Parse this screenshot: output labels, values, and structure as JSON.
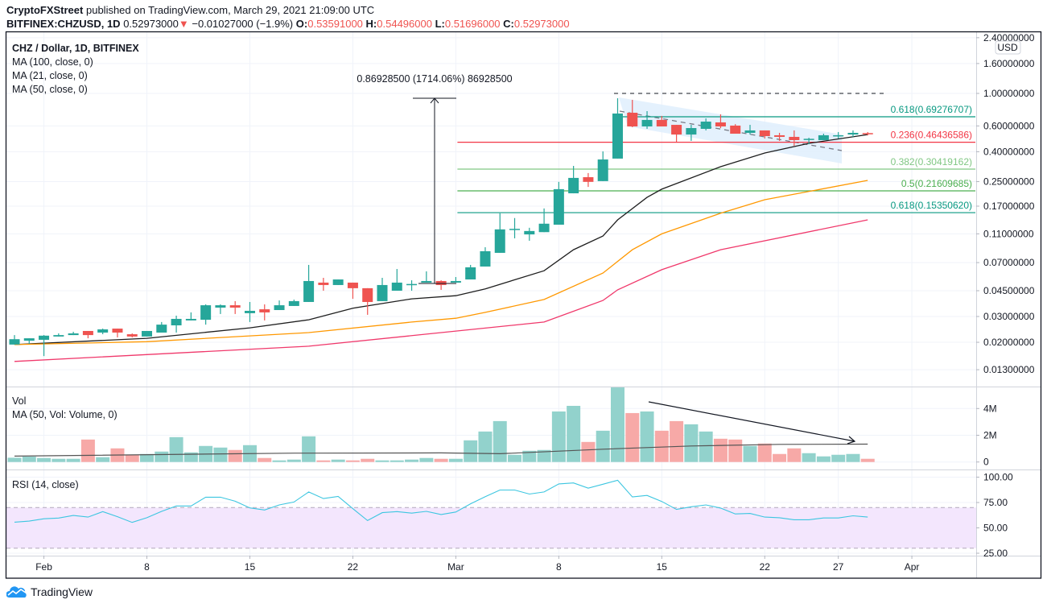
{
  "header": {
    "publisher": "CryptoFXStreet",
    "published_text": "published on TradingView.com, March 29, 2021 21:09:00 UTC",
    "symbol": "BITFINEX:CHZUSD, 1D",
    "last": "0.52973000",
    "change": "−0.01027000 (−1.9%)",
    "o_label": "O:",
    "o": "0.53591000",
    "h_label": "H:",
    "h": "0.54496000",
    "l_label": "L:",
    "l": "0.51696000",
    "c_label": "C:",
    "c": "0.52973000",
    "down_icon": "triangle-down"
  },
  "legend": {
    "title": "CHZ / Dollar, 1D, BITFINEX",
    "ma100": "MA (100, close, 0)",
    "ma21": "MA (21, close, 0)",
    "ma50": "MA (50, close, 0)",
    "vol": "Vol",
    "vol_ma": "MA (50, Vol: Volume, 0)",
    "rsi": "RSI (14, close)"
  },
  "annotations": {
    "measure_label": "0.86928500 (1714.06%) 86928500"
  },
  "price_axis": {
    "currency": "USD",
    "labels": [
      "2.40000000",
      "1.60000000",
      "1.00000000",
      "0.60000000",
      "0.40000000",
      "0.25000000",
      "0.17000000",
      "0.11000000",
      "0.07000000",
      "0.04500000",
      "0.03000000",
      "0.02000000",
      "0.01300000"
    ]
  },
  "volume_axis": {
    "labels": [
      "4M",
      "2M",
      "0"
    ],
    "values_m": [
      4,
      2,
      0
    ]
  },
  "rsi_axis": {
    "labels": [
      "100.00",
      "75.00",
      "50.00",
      "25.00"
    ],
    "values": [
      100,
      75,
      50,
      25
    ],
    "band": [
      30,
      70
    ]
  },
  "time_axis": {
    "labels": [
      {
        "label": "Feb",
        "date": "2021-02-01"
      },
      {
        "label": "8",
        "date": "2021-02-08"
      },
      {
        "label": "15",
        "date": "2021-02-15"
      },
      {
        "label": "22",
        "date": "2021-02-22"
      },
      {
        "label": "Mar",
        "date": "2021-03-01"
      },
      {
        "label": "8",
        "date": "2021-03-08"
      },
      {
        "label": "15",
        "date": "2021-03-15"
      },
      {
        "label": "22",
        "date": "2021-03-22"
      },
      {
        "label": "27",
        "date": "2021-03-27"
      },
      {
        "label": "Apr",
        "date": "2021-04-01"
      }
    ]
  },
  "footer": {
    "brand": "TradingView"
  },
  "colors": {
    "up": "#26a69a",
    "down": "#ef5350",
    "vol_up": "#92d2cc",
    "vol_down": "#f7a9a7",
    "ma21": "#1e1e1e",
    "ma50": "#ff9800",
    "ma100": "#f0386b",
    "rsi": "#3cc6e0",
    "rsi_band": "#f3e6fd",
    "wedge": "#ddeefc"
  },
  "chart_data": {
    "type": "candlestick",
    "scale": "log",
    "ylim": [
      0.012,
      2.5
    ],
    "candles": [
      {
        "date": "2021-01-30",
        "o": 0.0193,
        "h": 0.0224,
        "l": 0.0193,
        "c": 0.021
      },
      {
        "date": "2021-01-31",
        "o": 0.0205,
        "h": 0.0213,
        "l": 0.0195,
        "c": 0.0213
      },
      {
        "date": "2021-02-01",
        "o": 0.0208,
        "h": 0.0224,
        "l": 0.0161,
        "c": 0.0222
      },
      {
        "date": "2021-02-02",
        "o": 0.0219,
        "h": 0.023,
        "l": 0.0219,
        "c": 0.0224
      },
      {
        "date": "2021-02-03",
        "o": 0.0224,
        "h": 0.0236,
        "l": 0.0224,
        "c": 0.023
      },
      {
        "date": "2021-02-04",
        "o": 0.0239,
        "h": 0.0239,
        "l": 0.0213,
        "c": 0.0224
      },
      {
        "date": "2021-02-05",
        "o": 0.0233,
        "h": 0.0248,
        "l": 0.0227,
        "c": 0.0245
      },
      {
        "date": "2021-02-06",
        "o": 0.0248,
        "h": 0.0248,
        "l": 0.0216,
        "c": 0.0233
      },
      {
        "date": "2021-02-07",
        "o": 0.0227,
        "h": 0.023,
        "l": 0.0216,
        "c": 0.0219
      },
      {
        "date": "2021-02-08",
        "o": 0.0219,
        "h": 0.0239,
        "l": 0.0219,
        "c": 0.0239
      },
      {
        "date": "2021-02-09",
        "o": 0.0233,
        "h": 0.0275,
        "l": 0.0233,
        "c": 0.0264
      },
      {
        "date": "2021-02-10",
        "o": 0.0261,
        "h": 0.0304,
        "l": 0.0233,
        "c": 0.0289
      },
      {
        "date": "2021-02-11",
        "o": 0.0282,
        "h": 0.032,
        "l": 0.0282,
        "c": 0.0289
      },
      {
        "date": "2021-02-12",
        "o": 0.0285,
        "h": 0.0363,
        "l": 0.0264,
        "c": 0.0358
      },
      {
        "date": "2021-02-13",
        "o": 0.0345,
        "h": 0.0363,
        "l": 0.0312,
        "c": 0.0358
      },
      {
        "date": "2021-02-14",
        "o": 0.0358,
        "h": 0.0382,
        "l": 0.0312,
        "c": 0.0345
      },
      {
        "date": "2021-02-15",
        "o": 0.0316,
        "h": 0.0377,
        "l": 0.0275,
        "c": 0.0328
      },
      {
        "date": "2021-02-16",
        "o": 0.0336,
        "h": 0.0363,
        "l": 0.0282,
        "c": 0.032
      },
      {
        "date": "2021-02-17",
        "o": 0.0332,
        "h": 0.0386,
        "l": 0.0332,
        "c": 0.0358
      },
      {
        "date": "2021-02-18",
        "o": 0.0354,
        "h": 0.0391,
        "l": 0.0354,
        "c": 0.0382
      },
      {
        "date": "2021-02-19",
        "o": 0.0377,
        "h": 0.0675,
        "l": 0.0377,
        "c": 0.0524
      },
      {
        "date": "2021-02-20",
        "o": 0.0511,
        "h": 0.0551,
        "l": 0.045,
        "c": 0.0492
      },
      {
        "date": "2021-02-21",
        "o": 0.0492,
        "h": 0.0537,
        "l": 0.0492,
        "c": 0.0537
      },
      {
        "date": "2021-02-22",
        "o": 0.0511,
        "h": 0.0511,
        "l": 0.0396,
        "c": 0.0468
      },
      {
        "date": "2021-02-23",
        "o": 0.0468,
        "h": 0.0468,
        "l": 0.0308,
        "c": 0.0377
      },
      {
        "date": "2021-02-24",
        "o": 0.0382,
        "h": 0.0551,
        "l": 0.0382,
        "c": 0.0492
      },
      {
        "date": "2021-02-25",
        "o": 0.045,
        "h": 0.0633,
        "l": 0.045,
        "c": 0.0511
      },
      {
        "date": "2021-02-26",
        "o": 0.0498,
        "h": 0.053,
        "l": 0.045,
        "c": 0.05
      },
      {
        "date": "2021-02-27",
        "o": 0.0511,
        "h": 0.061,
        "l": 0.0511,
        "c": 0.0524
      },
      {
        "date": "2021-02-28",
        "o": 0.0524,
        "h": 0.053,
        "l": 0.0456,
        "c": 0.0492
      },
      {
        "date": "2021-03-01",
        "o": 0.0511,
        "h": 0.0558,
        "l": 0.0511,
        "c": 0.0524
      },
      {
        "date": "2021-03-02",
        "o": 0.0537,
        "h": 0.0675,
        "l": 0.0537,
        "c": 0.065
      },
      {
        "date": "2021-03-03",
        "o": 0.0658,
        "h": 0.0891,
        "l": 0.0658,
        "c": 0.0837
      },
      {
        "date": "2021-03-04",
        "o": 0.0816,
        "h": 0.152,
        "l": 0.0816,
        "c": 0.118
      },
      {
        "date": "2021-03-05",
        "o": 0.118,
        "h": 0.141,
        "l": 0.1025,
        "c": 0.119
      },
      {
        "date": "2021-03-06",
        "o": 0.109,
        "h": 0.121,
        "l": 0.0987,
        "c": 0.115
      },
      {
        "date": "2021-03-07",
        "o": 0.113,
        "h": 0.164,
        "l": 0.113,
        "c": 0.129
      },
      {
        "date": "2021-03-08",
        "o": 0.127,
        "h": 0.249,
        "l": 0.127,
        "c": 0.222
      },
      {
        "date": "2021-03-09",
        "o": 0.208,
        "h": 0.32,
        "l": 0.208,
        "c": 0.265
      },
      {
        "date": "2021-03-10",
        "o": 0.268,
        "h": 0.286,
        "l": 0.23,
        "c": 0.249
      },
      {
        "date": "2021-03-11",
        "o": 0.252,
        "h": 0.402,
        "l": 0.252,
        "c": 0.354
      },
      {
        "date": "2021-03-12",
        "o": 0.359,
        "h": 0.927,
        "l": 0.359,
        "c": 0.729
      },
      {
        "date": "2021-03-13",
        "o": 0.738,
        "h": 0.904,
        "l": 0.588,
        "c": 0.595
      },
      {
        "date": "2021-03-14",
        "o": 0.595,
        "h": 0.757,
        "l": 0.573,
        "c": 0.659
      },
      {
        "date": "2021-03-15",
        "o": 0.659,
        "h": 0.702,
        "l": 0.595,
        "c": 0.595
      },
      {
        "date": "2021-03-16",
        "o": 0.61,
        "h": 0.61,
        "l": 0.468,
        "c": 0.524
      },
      {
        "date": "2021-03-17",
        "o": 0.524,
        "h": 0.61,
        "l": 0.474,
        "c": 0.58
      },
      {
        "date": "2021-03-18",
        "o": 0.573,
        "h": 0.675,
        "l": 0.559,
        "c": 0.642
      },
      {
        "date": "2021-03-19",
        "o": 0.634,
        "h": 0.72,
        "l": 0.58,
        "c": 0.595
      },
      {
        "date": "2021-03-20",
        "o": 0.603,
        "h": 0.617,
        "l": 0.531,
        "c": 0.531
      },
      {
        "date": "2021-03-21",
        "o": 0.538,
        "h": 0.61,
        "l": 0.524,
        "c": 0.559
      },
      {
        "date": "2021-03-22",
        "o": 0.559,
        "h": 0.559,
        "l": 0.492,
        "c": 0.511
      },
      {
        "date": "2021-03-23",
        "o": 0.518,
        "h": 0.538,
        "l": 0.474,
        "c": 0.505
      },
      {
        "date": "2021-03-24",
        "o": 0.505,
        "h": 0.559,
        "l": 0.439,
        "c": 0.48
      },
      {
        "date": "2021-03-25",
        "o": 0.486,
        "h": 0.498,
        "l": 0.45,
        "c": 0.49
      },
      {
        "date": "2021-03-26",
        "o": 0.48,
        "h": 0.531,
        "l": 0.48,
        "c": 0.518
      },
      {
        "date": "2021-03-27",
        "o": 0.511,
        "h": 0.545,
        "l": 0.492,
        "c": 0.518
      },
      {
        "date": "2021-03-28",
        "o": 0.524,
        "h": 0.559,
        "l": 0.505,
        "c": 0.538
      },
      {
        "date": "2021-03-29",
        "o": 0.53591,
        "h": 0.54496,
        "l": 0.51696,
        "c": 0.52973
      }
    ],
    "moving_averages": [
      {
        "name": "MA (21, close, 0)",
        "color_key": "ma21",
        "points": [
          [
            "2021-01-30",
            0.0193
          ],
          [
            "2021-02-08",
            0.0213
          ],
          [
            "2021-02-15",
            0.0251
          ],
          [
            "2021-02-19",
            0.0285
          ],
          [
            "2021-02-22",
            0.0342
          ],
          [
            "2021-02-26",
            0.0396
          ],
          [
            "2021-03-01",
            0.0416
          ],
          [
            "2021-03-03",
            0.0463
          ],
          [
            "2021-03-07",
            0.0616
          ],
          [
            "2021-03-09",
            0.0857
          ],
          [
            "2021-03-11",
            0.1063
          ],
          [
            "2021-03-12",
            0.137
          ],
          [
            "2021-03-14",
            0.195
          ],
          [
            "2021-03-15",
            0.222
          ],
          [
            "2021-03-19",
            0.316
          ],
          [
            "2021-03-22",
            0.392
          ],
          [
            "2021-03-25",
            0.456
          ],
          [
            "2021-03-29",
            0.524
          ]
        ]
      },
      {
        "name": "MA (50, close, 0)",
        "color_key": "ma50",
        "points": [
          [
            "2021-01-30",
            0.0193
          ],
          [
            "2021-02-08",
            0.0202
          ],
          [
            "2021-02-19",
            0.0233
          ],
          [
            "2021-02-26",
            0.0275
          ],
          [
            "2021-03-01",
            0.0292
          ],
          [
            "2021-03-03",
            0.032
          ],
          [
            "2021-03-07",
            0.0392
          ],
          [
            "2021-03-11",
            0.0594
          ],
          [
            "2021-03-13",
            0.0857
          ],
          [
            "2021-03-15",
            0.11
          ],
          [
            "2021-03-19",
            0.152
          ],
          [
            "2021-03-22",
            0.188
          ],
          [
            "2021-03-29",
            0.255
          ]
        ]
      },
      {
        "name": "MA (100, close, 0)",
        "color_key": "ma100",
        "points": [
          [
            "2021-01-30",
            0.0148
          ],
          [
            "2021-02-19",
            0.0188
          ],
          [
            "2021-03-07",
            0.0275
          ],
          [
            "2021-03-11",
            0.0386
          ],
          [
            "2021-03-12",
            0.0456
          ],
          [
            "2021-03-15",
            0.0626
          ],
          [
            "2021-03-19",
            0.0857
          ],
          [
            "2021-03-29",
            0.137
          ]
        ]
      }
    ],
    "fibonacci": [
      {
        "ratio": "0.618",
        "value": 0.69276707,
        "label": "0.618(0.69276707)",
        "color": "#089981",
        "from": "2021-03-12"
      },
      {
        "ratio": "0.236",
        "value": 0.46436586,
        "label": "0.236(0.46436586)",
        "color": "#f23645",
        "from": "2021-03-01"
      },
      {
        "ratio": "0.382",
        "value": 0.30419162,
        "label": "0.382(0.30419162)",
        "color": "#81c784",
        "from": "2021-03-01"
      },
      {
        "ratio": "0.5",
        "value": 0.21609685,
        "label": "0.5(0.21609685)",
        "color": "#4caf50",
        "from": "2021-03-01"
      },
      {
        "ratio": "0.618",
        "value": 0.1535062,
        "label": "0.618(0.15350620)",
        "color": "#089981",
        "from": "2021-03-01"
      }
    ],
    "horizontal_level": 1.0,
    "volume_m": [
      0.32,
      0.4,
      0.3,
      0.24,
      0.24,
      1.68,
      0.36,
      1.02,
      0.52,
      0.6,
      0.78,
      1.86,
      0.72,
      1.2,
      1.08,
      0.9,
      1.26,
      0.3,
      0.12,
      0.18,
      1.92,
      0.12,
      0.18,
      0.12,
      0.24,
      0.12,
      0.12,
      0.18,
      0.3,
      0.24,
      0.24,
      1.62,
      2.28,
      3.06,
      0.54,
      0.84,
      0.9,
      3.78,
      4.2,
      1.5,
      2.34,
      5.58,
      3.66,
      3.78,
      2.34,
      3.06,
      2.82,
      2.28,
      1.74,
      1.68,
      1.2,
      1.38,
      0.6,
      1.02,
      0.66,
      0.42,
      0.54,
      0.6,
      0.24
    ],
    "volume_ma_m": [
      [
        "2021-01-30",
        0.44
      ],
      [
        "2021-02-18",
        0.66
      ],
      [
        "2021-02-28",
        0.68
      ],
      [
        "2021-03-04",
        0.62
      ],
      [
        "2021-03-11",
        0.96
      ],
      [
        "2021-03-17",
        1.2
      ],
      [
        "2021-03-23",
        1.32
      ],
      [
        "2021-03-29",
        1.34
      ]
    ],
    "rsi": [
      55.6,
      56.7,
      59,
      59.7,
      62.2,
      60.6,
      66,
      61,
      55.4,
      60,
      66.3,
      71.6,
      71.6,
      80.2,
      80.2,
      76.3,
      69.7,
      67.6,
      72.6,
      75.5,
      85.4,
      78.9,
      81,
      69,
      57.2,
      65,
      66,
      64.5,
      66.3,
      63.2,
      65.6,
      73.7,
      80.7,
      87.3,
      87.3,
      83.3,
      85.4,
      93.3,
      94.3,
      89.1,
      93,
      96.9,
      80.5,
      82,
      76,
      68.2,
      70.8,
      72.6,
      69.5,
      63.7,
      64.2,
      60.6,
      60,
      58,
      58,
      59.8,
      59.8,
      61.9,
      60.6
    ]
  }
}
